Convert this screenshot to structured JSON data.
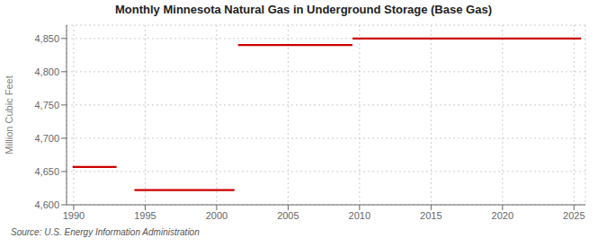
{
  "chart_data": {
    "type": "line",
    "title": "Monthly Minnesota Natural Gas in Underground Storage (Base Gas)",
    "ylabel": "Million Cubic Feet",
    "annotations": [
      "Source: U.S. Energy Information Administration"
    ],
    "x": [
      1989.92,
      1993.0,
      1993.0,
      1994.25,
      2001.25,
      2001.25,
      2001.5,
      2009.5,
      2009.5,
      2009.5,
      2025.5
    ],
    "values": [
      4657,
      4657,
      null,
      4622,
      4622,
      null,
      4840,
      4840,
      null,
      4850,
      4850
    ],
    "color": "#cc0000",
    "xlim": [
      1989.5,
      2025.8
    ],
    "ylim": [
      4600,
      4870
    ],
    "xticks": [
      1990,
      1995,
      2000,
      2005,
      2010,
      2015,
      2020,
      2025
    ],
    "yticks": [
      {
        "value": 4600,
        "label": "4,600"
      },
      {
        "value": 4650,
        "label": "4,650"
      },
      {
        "value": 4700,
        "label": "4,700"
      },
      {
        "value": 4750,
        "label": "4,750"
      },
      {
        "value": 4800,
        "label": "4,800"
      },
      {
        "value": 4850,
        "label": "4,850"
      }
    ],
    "grid": true
  }
}
